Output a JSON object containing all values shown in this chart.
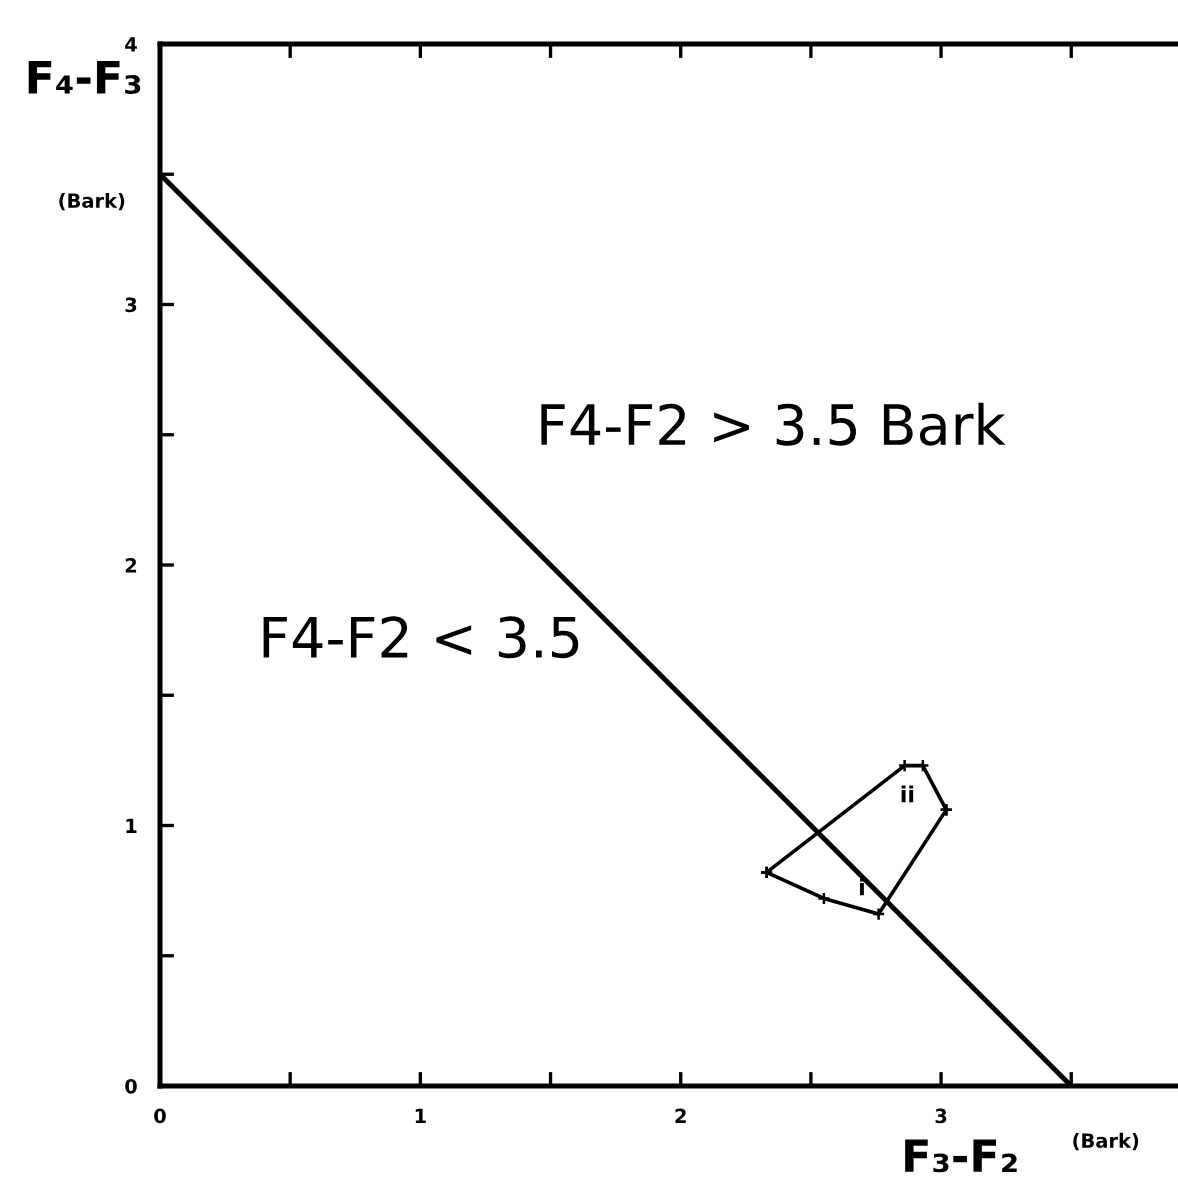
{
  "chart_data": {
    "type": "line",
    "xlabel": "F₃-F₂",
    "ylabel": "F₄-F₃",
    "xlim": [
      0,
      3.91
    ],
    "ylim": [
      0,
      4
    ],
    "xticks": [
      0,
      {
        "value": 0.5,
        "label": null
      },
      1,
      {
        "value": 1.5,
        "label": null
      },
      2,
      {
        "value": 2.5,
        "label": null
      },
      3,
      {
        "value": 3.5,
        "label": null
      }
    ],
    "yticks": [
      0,
      {
        "value": 0.5,
        "label": null
      },
      1,
      {
        "value": 1.5,
        "label": null
      },
      2,
      {
        "value": 2.5,
        "label": null
      },
      3,
      {
        "value": 3.5,
        "label": null
      },
      4
    ],
    "series": [
      {
        "color": "#000000",
        "x": [
          0,
          3.5
        ],
        "values": [
          3.5,
          0
        ],
        "marker": "none"
      },
      {
        "color": "#000000",
        "x": [
          2.33,
          2.55,
          2.76,
          3.02
        ],
        "values": [
          0.82,
          0.72,
          0.66,
          1.06
        ],
        "marker": "cross"
      },
      {
        "color": "#000000",
        "x": [
          2.33,
          2.86,
          2.93,
          3.02
        ],
        "values": [
          0.82,
          1.23,
          1.23,
          1.06
        ],
        "marker": "cross"
      }
    ],
    "annotations": [
      "F4-F2 > 3.5 Bark",
      "F4-F2 < 3.5",
      "(Bark)",
      "(Bark)",
      {
        "text": "ii",
        "x": 2.86,
        "y": 1.23
      },
      {
        "text": "i",
        "x": 2.76,
        "y": 0.66
      }
    ],
    "grid": false,
    "legend": false,
    "line_style": "solid"
  }
}
